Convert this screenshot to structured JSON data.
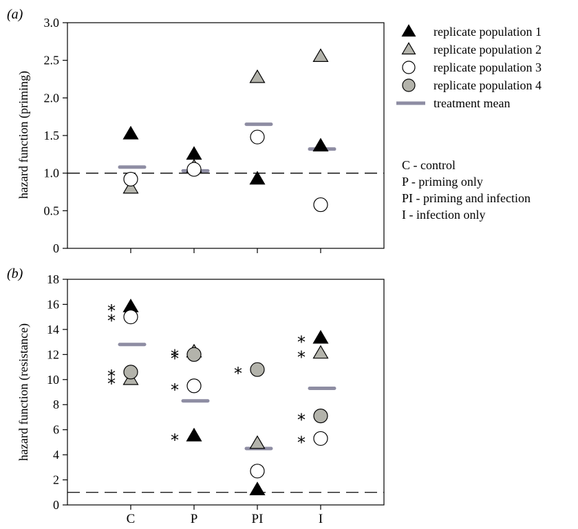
{
  "chart_data": [
    {
      "panel": "(a)",
      "type": "scatter",
      "ylabel": "hazard function (priming)",
      "ylim": [
        0,
        3.0
      ],
      "yticks": [
        "0",
        "0.5",
        "1.0",
        "1.5",
        "2.0",
        "2.5",
        "3.0"
      ],
      "categories": [
        "C",
        "P",
        "PI",
        "I"
      ],
      "reference_line": 1.0,
      "series": [
        {
          "name": "replicate population 1",
          "marker": "triangle",
          "fill": "#000000",
          "values": [
            1.52,
            1.25,
            0.92,
            1.36
          ]
        },
        {
          "name": "replicate population 2",
          "marker": "triangle",
          "fill": "#b3b3ab",
          "values": [
            0.8,
            1.08,
            2.27,
            2.55
          ]
        },
        {
          "name": "replicate population 3",
          "marker": "circle",
          "fill": "#ffffff",
          "values": [
            0.92,
            1.05,
            1.48,
            0.58
          ]
        },
        {
          "name": "treatment mean",
          "marker": "bar",
          "fill": "#8e8da3",
          "values": [
            1.08,
            1.03,
            1.65,
            1.32
          ]
        }
      ],
      "significance": []
    },
    {
      "panel": "(b)",
      "type": "scatter",
      "ylabel": "hazard function (resistance)",
      "ylim": [
        0,
        18
      ],
      "yticks": [
        "0",
        "2",
        "4",
        "6",
        "8",
        "10",
        "12",
        "14",
        "16",
        "18"
      ],
      "categories": [
        "C",
        "P",
        "PI",
        "I"
      ],
      "reference_line": 1.0,
      "series": [
        {
          "name": "replicate population 1",
          "marker": "triangle",
          "fill": "#000000",
          "values": [
            15.8,
            5.5,
            1.2,
            13.3
          ]
        },
        {
          "name": "replicate population 2",
          "marker": "triangle",
          "fill": "#b3b3ab",
          "values": [
            10.0,
            12.2,
            4.9,
            12.1
          ]
        },
        {
          "name": "replicate population 3",
          "marker": "circle",
          "fill": "#ffffff",
          "values": [
            15.0,
            9.5,
            2.7,
            5.3
          ]
        },
        {
          "name": "replicate population 4",
          "marker": "circle",
          "fill": "#b3b3ab",
          "values": [
            10.6,
            12.0,
            10.8,
            7.1
          ]
        },
        {
          "name": "treatment mean",
          "marker": "bar",
          "fill": "#8e8da3",
          "values": [
            12.8,
            8.3,
            4.5,
            9.3
          ]
        }
      ],
      "significance": [
        {
          "category": "C",
          "value": 15.8,
          "label": "*"
        },
        {
          "category": "C",
          "value": 15.0,
          "label": "*"
        },
        {
          "category": "C",
          "value": 10.6,
          "label": "*"
        },
        {
          "category": "C",
          "value": 10.0,
          "label": "*"
        },
        {
          "category": "P",
          "value": 12.2,
          "label": "*"
        },
        {
          "category": "P",
          "value": 12.0,
          "label": "*"
        },
        {
          "category": "P",
          "value": 9.5,
          "label": "*"
        },
        {
          "category": "P",
          "value": 5.5,
          "label": "*"
        },
        {
          "category": "PI",
          "value": 10.8,
          "label": "*"
        },
        {
          "category": "I",
          "value": 13.3,
          "label": "*"
        },
        {
          "category": "I",
          "value": 12.1,
          "label": "*"
        },
        {
          "category": "I",
          "value": 7.1,
          "label": "*"
        },
        {
          "category": "I",
          "value": 5.3,
          "label": "*"
        }
      ]
    }
  ],
  "legend": {
    "items": [
      {
        "label": "replicate population 1",
        "marker": "triangle",
        "fill": "#000000"
      },
      {
        "label": "replicate population 2",
        "marker": "triangle",
        "fill": "#b3b3ab"
      },
      {
        "label": "replicate population 3",
        "marker": "circle",
        "fill": "#ffffff"
      },
      {
        "label": "replicate population 4",
        "marker": "circle",
        "fill": "#b3b3ab"
      },
      {
        "label": "treatment mean",
        "marker": "bar",
        "fill": "#8e8da3"
      }
    ],
    "key": [
      "C - control",
      "P - priming only",
      "PI - priming and infection",
      "I - infection only"
    ]
  },
  "colors": {
    "black": "#000000",
    "grey_marker": "#b3b3ab",
    "mean_bar": "#8e8da3"
  }
}
